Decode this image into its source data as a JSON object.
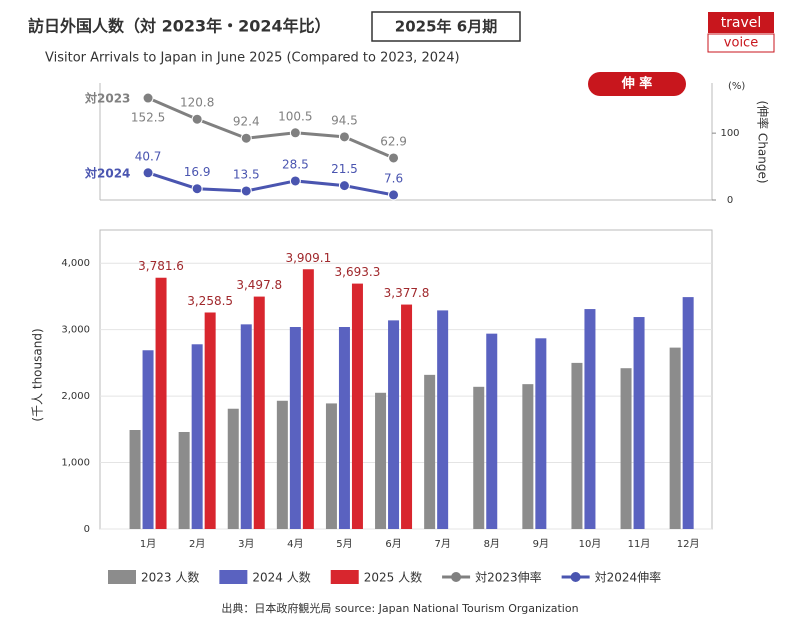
{
  "header": {
    "title": "訪日外国人数（対 2023年・2024年比）",
    "period": "2025年 6月期",
    "subtitle": "Visitor Arrivals to Japan in June 2025 (Compared to 2023, 2024)",
    "logo": [
      "travel",
      "voice"
    ],
    "badge": "伸 率"
  },
  "chart_data": [
    {
      "type": "line",
      "y_unit": "(%)",
      "y_label": "(伸率 Change)",
      "ylim": [
        0,
        175
      ],
      "yticks": [
        0,
        100
      ],
      "series": [
        {
          "name": "対2023伸率",
          "label": "対2023",
          "color": "#808080",
          "values": [
            152.5,
            120.8,
            92.4,
            100.5,
            94.5,
            62.9
          ]
        },
        {
          "name": "対2024伸率",
          "label": "対2024",
          "color": "#4a55b0",
          "values": [
            40.7,
            16.9,
            13.5,
            28.5,
            21.5,
            7.6
          ]
        }
      ]
    },
    {
      "type": "bar",
      "y_label": "(千人 thousand)",
      "ylim": [
        0,
        4500
      ],
      "grid": true,
      "yticks": [
        0,
        {
          "value": 1000,
          "label": "1,000"
        },
        {
          "value": 2000,
          "label": "2,000"
        },
        {
          "value": 3000,
          "label": "3,000"
        },
        {
          "value": 4000,
          "label": "4,000"
        }
      ],
      "categories": [
        "1月",
        "2月",
        "3月",
        "4月",
        "5月",
        "6月",
        "7月",
        "8月",
        "9月",
        "10月",
        "11月",
        "12月"
      ],
      "series": [
        {
          "name": "2023 人数",
          "color": "#8c8c8c",
          "values": [
            1490,
            1460,
            1810,
            1930,
            1890,
            2050,
            2320,
            2140,
            2180,
            2500,
            2420,
            2730
          ]
        },
        {
          "name": "2024 人数",
          "color": "#5a62c0",
          "values": [
            2690,
            2780,
            3080,
            3040,
            3040,
            3140,
            3290,
            2940,
            2870,
            3310,
            3190,
            3490
          ]
        },
        {
          "name": "2025 人数",
          "color": "#d8262e",
          "values": [
            3781.6,
            3258.5,
            3497.8,
            3909.1,
            3693.3,
            3377.8,
            null,
            null,
            null,
            null,
            null,
            null
          ],
          "value_labels": [
            "3,781.6",
            "3,258.5",
            "3,497.8",
            "3,909.1",
            "3,693.3",
            "3,377.8",
            null,
            null,
            null,
            null,
            null,
            null
          ]
        }
      ]
    }
  ],
  "source": "出典：日本政府観光局  source: Japan National Tourism Organization"
}
